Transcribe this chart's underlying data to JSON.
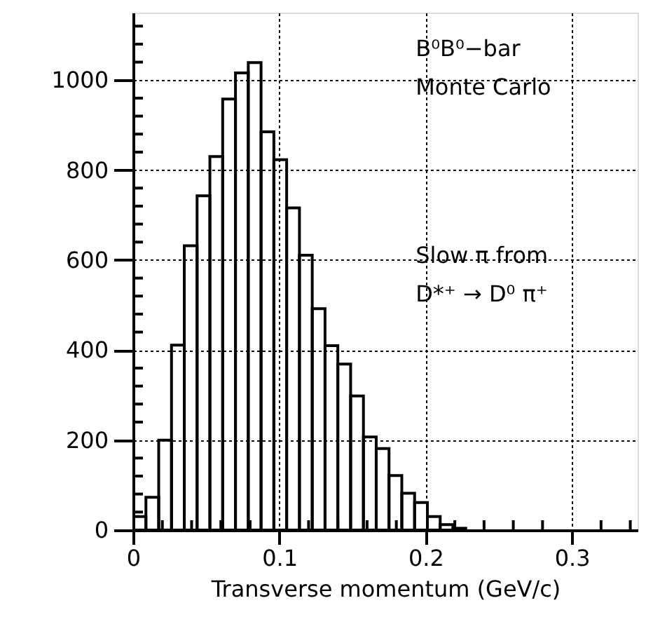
{
  "chart_data": {
    "type": "histogram",
    "xlabel": "Transverse momentum (GeV/c)",
    "color": "#000000",
    "bins": [
      0,
      0.00875,
      0.0175,
      0.02625,
      0.035,
      0.04375,
      0.0525,
      0.06125,
      0.07,
      0.07875,
      0.0875,
      0.09625,
      0.105,
      0.11375,
      0.1225,
      0.13125,
      0.14,
      0.14875,
      0.1575,
      0.16625,
      0.175,
      0.18375,
      0.1925,
      0.20125,
      0.21,
      0.21875,
      0.2275
    ],
    "values": [
      30,
      73,
      200,
      411,
      632,
      743,
      830,
      958,
      1016,
      1039,
      885,
      823,
      716,
      611,
      492,
      410,
      369,
      298,
      207,
      181,
      121,
      82,
      61,
      30,
      12,
      4
    ],
    "xlim": [
      0,
      0.345
    ],
    "ylim": [
      0,
      1150
    ],
    "xticks": [
      0,
      {
        "value": 0.02,
        "label": null
      },
      {
        "value": 0.04,
        "label": null
      },
      {
        "value": 0.06,
        "label": null
      },
      {
        "value": 0.08,
        "label": null
      },
      0.1,
      {
        "value": 0.12,
        "label": null
      },
      {
        "value": 0.14,
        "label": null
      },
      {
        "value": 0.16,
        "label": null
      },
      {
        "value": 0.18,
        "label": null
      },
      0.2,
      {
        "value": 0.22,
        "label": null
      },
      {
        "value": 0.24,
        "label": null
      },
      {
        "value": 0.26,
        "label": null
      },
      {
        "value": 0.28,
        "label": null
      },
      0.3,
      {
        "value": 0.32,
        "label": null
      },
      {
        "value": 0.34,
        "label": null
      }
    ],
    "yticks": [
      0,
      {
        "value": 40,
        "label": null
      },
      {
        "value": 80,
        "label": null
      },
      {
        "value": 120,
        "label": null
      },
      {
        "value": 160,
        "label": null
      },
      200,
      {
        "value": 240,
        "label": null
      },
      {
        "value": 280,
        "label": null
      },
      {
        "value": 320,
        "label": null
      },
      {
        "value": 360,
        "label": null
      },
      400,
      {
        "value": 440,
        "label": null
      },
      {
        "value": 480,
        "label": null
      },
      {
        "value": 520,
        "label": null
      },
      {
        "value": 560,
        "label": null
      },
      600,
      {
        "value": 640,
        "label": null
      },
      {
        "value": 680,
        "label": null
      },
      {
        "value": 720,
        "label": null
      },
      {
        "value": 760,
        "label": null
      },
      800,
      {
        "value": 840,
        "label": null
      },
      {
        "value": 880,
        "label": null
      },
      {
        "value": 920,
        "label": null
      },
      {
        "value": 960,
        "label": null
      },
      1000,
      {
        "value": 1040,
        "label": null
      },
      {
        "value": 1080,
        "label": null
      },
      {
        "value": 1120,
        "label": null
      }
    ],
    "grid": true,
    "annotations": [
      "B⁰B⁰−bar",
      "Monte Carlo",
      "Slow π from",
      "D*⁺ → D⁰ π⁺"
    ]
  }
}
